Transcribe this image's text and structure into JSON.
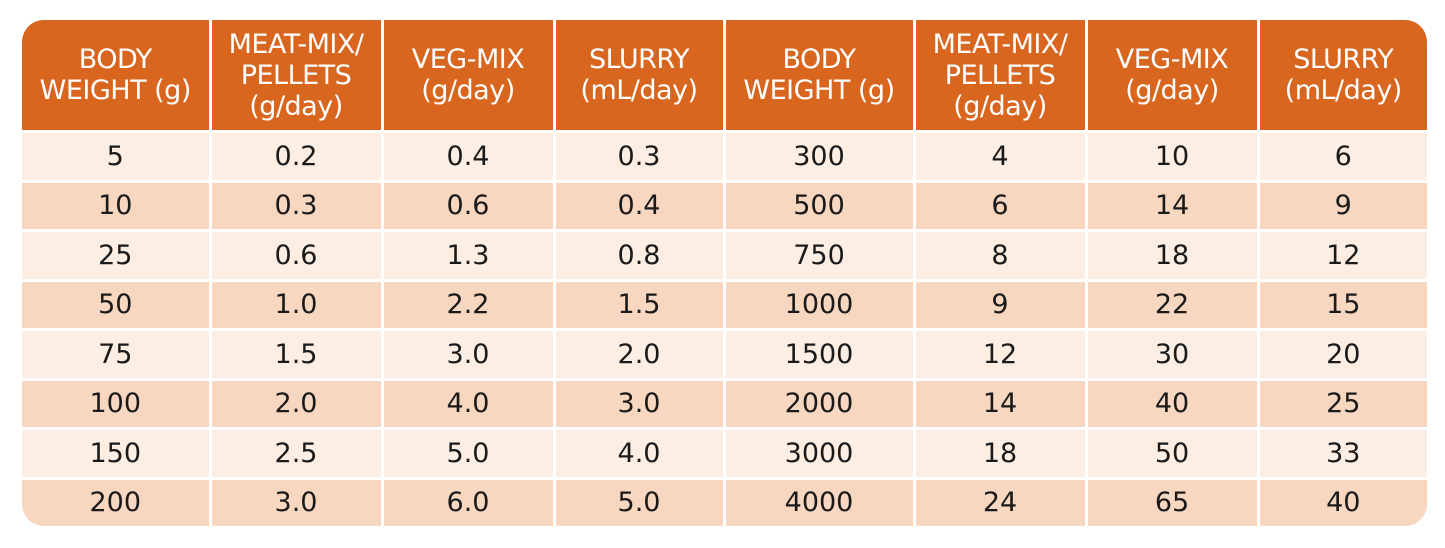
{
  "colors": {
    "header_bg": "#d9661f",
    "row_light": "#fdeee3",
    "row_dark": "#f8d7c0"
  },
  "headers": [
    [
      "BODY",
      "WEIGHT (g)"
    ],
    [
      "MEAT-MIX/",
      "PELLETS",
      "(g/day)"
    ],
    [
      "VEG-MIX",
      "(g/day)"
    ],
    [
      "SLURRY",
      "(mL/day)"
    ],
    [
      "BODY",
      "WEIGHT (g)"
    ],
    [
      "MEAT-MIX/",
      "PELLETS",
      "(g/day)"
    ],
    [
      "VEG-MIX",
      "(g/day)"
    ],
    [
      "SLURRY",
      "(mL/day)"
    ]
  ],
  "rows": [
    [
      "5",
      "0.2",
      "0.4",
      "0.3",
      "300",
      "4",
      "10",
      "6"
    ],
    [
      "10",
      "0.3",
      "0.6",
      "0.4",
      "500",
      "6",
      "14",
      "9"
    ],
    [
      "25",
      "0.6",
      "1.3",
      "0.8",
      "750",
      "8",
      "18",
      "12"
    ],
    [
      "50",
      "1.0",
      "2.2",
      "1.5",
      "1000",
      "9",
      "22",
      "15"
    ],
    [
      "75",
      "1.5",
      "3.0",
      "2.0",
      "1500",
      "12",
      "30",
      "20"
    ],
    [
      "100",
      "2.0",
      "4.0",
      "3.0",
      "2000",
      "14",
      "40",
      "25"
    ],
    [
      "150",
      "2.5",
      "5.0",
      "4.0",
      "3000",
      "18",
      "50",
      "33"
    ],
    [
      "200",
      "3.0",
      "6.0",
      "5.0",
      "4000",
      "24",
      "65",
      "40"
    ]
  ]
}
